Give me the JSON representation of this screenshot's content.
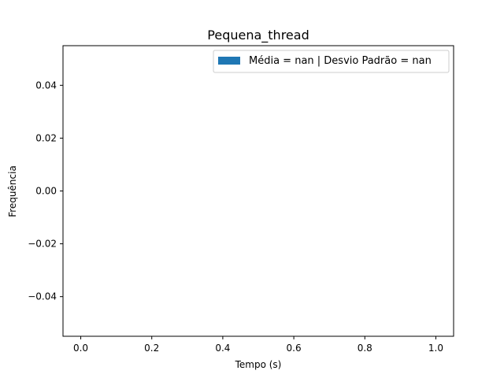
{
  "chart_data": {
    "type": "bar",
    "title": "Pequena_thread",
    "xlabel": "Tempo (s)",
    "ylabel": "Frequência",
    "xlim": [
      -0.05,
      1.05
    ],
    "ylim": [
      -0.055,
      0.055
    ],
    "x_ticks": [
      0.0,
      0.2,
      0.4,
      0.6,
      0.8,
      1.0
    ],
    "x_tick_labels": [
      "0.0",
      "0.2",
      "0.4",
      "0.6",
      "0.8",
      "1.0"
    ],
    "y_ticks": [
      0.04,
      0.02,
      0.0,
      -0.02,
      -0.04
    ],
    "y_tick_labels": [
      "0.04",
      "0.02",
      "0.00",
      "−0.02",
      "−0.04"
    ],
    "grid": false,
    "legend_position": "top-right",
    "series": [
      {
        "name": "Média = nan | Desvio Padrão = nan",
        "color": "#1f77b4",
        "values": []
      }
    ]
  }
}
